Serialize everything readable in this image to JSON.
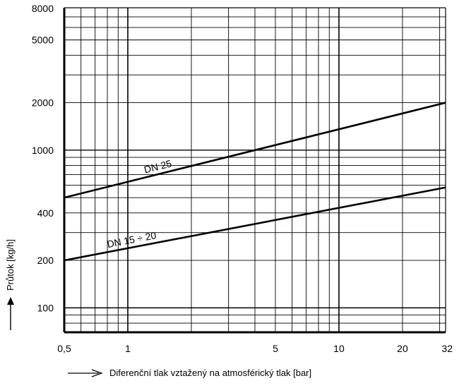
{
  "chart_data": {
    "type": "line",
    "title": "",
    "xlabel": "Diferenční tlak vztažený na atmosférický tlak [bar]",
    "ylabel": "Průtok [kg/h]",
    "x_scale": "log",
    "y_scale": "log",
    "xlim": [
      0.5,
      32
    ],
    "ylim": [
      70,
      8000
    ],
    "grid": true,
    "legend": "none",
    "x_ticks": [
      {
        "value": 0.5,
        "label": "0,5"
      },
      {
        "value": 1,
        "label": "1"
      },
      {
        "value": 5,
        "label": "5"
      },
      {
        "value": 10,
        "label": "10"
      },
      {
        "value": 20,
        "label": "20"
      },
      {
        "value": 32,
        "label": "32"
      }
    ],
    "y_ticks": [
      {
        "value": 100,
        "label": "100"
      },
      {
        "value": 200,
        "label": "200"
      },
      {
        "value": 400,
        "label": "400"
      },
      {
        "value": 1000,
        "label": "1000"
      },
      {
        "value": 2000,
        "label": "2000"
      },
      {
        "value": 5000,
        "label": "5000"
      },
      {
        "value": 8000,
        "label": "8000"
      }
    ],
    "series": [
      {
        "name": "DN 25",
        "x": [
          0.5,
          32
        ],
        "y": [
          500,
          2000
        ]
      },
      {
        "name": "DN 15 ÷ 20",
        "x": [
          0.5,
          32
        ],
        "y": [
          200,
          580
        ]
      }
    ]
  }
}
